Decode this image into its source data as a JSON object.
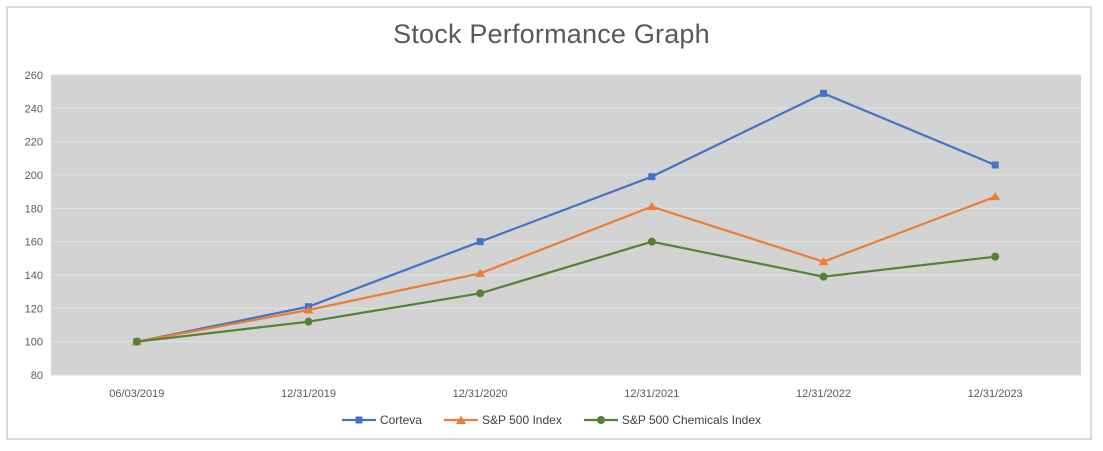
{
  "page": {
    "background_color": "#ffffff",
    "frame_border_color": "#d9d9d9"
  },
  "chart_data": {
    "type": "line",
    "title": "Stock Performance Graph",
    "categories": [
      "06/03/2019",
      "12/31/2019",
      "12/31/2020",
      "12/31/2021",
      "12/31/2022",
      "12/31/2023"
    ],
    "series": [
      {
        "name": "Corteva",
        "marker": "square",
        "color": "#4472c4",
        "values": [
          100,
          121,
          160,
          199,
          249,
          206
        ]
      },
      {
        "name": "S&P 500 Index",
        "marker": "triangle",
        "color": "#ed7d31",
        "values": [
          100,
          119,
          141,
          181,
          148,
          187
        ]
      },
      {
        "name": "S&P 500 Chemicals Index",
        "marker": "circle",
        "color": "#548235",
        "values": [
          100,
          112,
          129,
          160,
          139,
          151
        ]
      }
    ],
    "ylim": [
      80,
      260
    ],
    "yticks": [
      80,
      100,
      120,
      140,
      160,
      180,
      200,
      220,
      240,
      260
    ],
    "grid": true,
    "legend_position": "bottom",
    "plot_bg_color": "#d3d3d3",
    "gridline_color": "#e2e2e2",
    "axis_text_color": "#595959",
    "title_color": "#595959"
  }
}
